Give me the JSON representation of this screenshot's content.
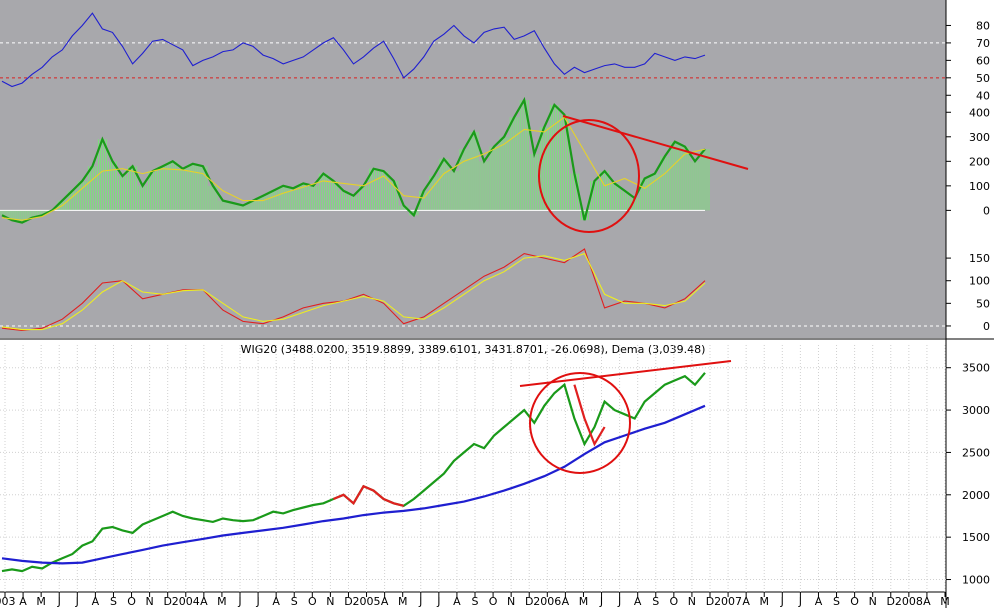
{
  "chart_data": [
    {
      "type": "line",
      "panel": "rsi",
      "ylim": [
        35,
        90
      ],
      "yticks": [
        40,
        50,
        60,
        70,
        80
      ],
      "reference_lines": [
        70,
        50
      ],
      "reference_colors": [
        "#ffffff",
        "#d92020"
      ],
      "series": [
        {
          "color": "#1f1fd0",
          "x": [
            0,
            10,
            20,
            30,
            40,
            50,
            60,
            70,
            80,
            90,
            100,
            110,
            120,
            130,
            140,
            150,
            160,
            170,
            180,
            190,
            200,
            210,
            220,
            230,
            240,
            250,
            260,
            270,
            280,
            290,
            300,
            310,
            320,
            330,
            340,
            350,
            360,
            370,
            380,
            390,
            400,
            410,
            420,
            430,
            440,
            450,
            460,
            470,
            480,
            490,
            500,
            510,
            520,
            530,
            540,
            550,
            560,
            570,
            580,
            590,
            600,
            610,
            620,
            630,
            640,
            650,
            660,
            670,
            680,
            690,
            700
          ],
          "values": [
            48,
            45,
            47,
            52,
            56,
            62,
            66,
            74,
            80,
            87,
            78,
            76,
            68,
            58,
            64,
            71,
            72,
            69,
            66,
            57,
            60,
            62,
            65,
            66,
            70,
            68,
            63,
            61,
            58,
            60,
            62,
            66,
            70,
            73,
            66,
            58,
            62,
            67,
            71,
            61,
            50,
            55,
            62,
            71,
            75,
            80,
            74,
            70,
            76,
            78,
            79,
            72,
            74,
            77,
            67,
            58,
            52,
            56,
            53,
            55,
            57,
            58,
            56,
            56,
            58,
            64,
            62,
            60,
            62,
            61,
            63
          ]
        }
      ]
    },
    {
      "type": "area",
      "panel": "histogram",
      "ylim": [
        -80,
        450
      ],
      "yticks": [
        0,
        100,
        200,
        300,
        400
      ],
      "series": [
        {
          "color": "#1a9a1a",
          "fill": "#7de07d",
          "x": [
            0,
            10,
            20,
            30,
            40,
            50,
            60,
            70,
            80,
            90,
            100,
            110,
            120,
            130,
            140,
            150,
            160,
            170,
            180,
            190,
            200,
            210,
            220,
            230,
            240,
            250,
            260,
            270,
            280,
            290,
            300,
            310,
            320,
            330,
            340,
            350,
            360,
            370,
            380,
            390,
            400,
            410,
            420,
            430,
            440,
            450,
            460,
            470,
            480,
            490,
            500,
            510,
            520,
            530,
            540,
            550,
            560,
            570,
            580,
            590,
            600,
            610,
            620,
            630,
            640,
            650,
            660,
            670,
            680,
            690,
            700
          ],
          "values": [
            -20,
            -40,
            -50,
            -30,
            -20,
            0,
            40,
            80,
            120,
            180,
            290,
            200,
            140,
            180,
            100,
            160,
            180,
            200,
            170,
            190,
            180,
            100,
            40,
            30,
            20,
            40,
            60,
            80,
            100,
            90,
            110,
            100,
            150,
            120,
            80,
            60,
            100,
            170,
            160,
            120,
            20,
            -20,
            80,
            140,
            210,
            160,
            250,
            320,
            200,
            260,
            300,
            380,
            450,
            230,
            340,
            430,
            390,
            150,
            -40,
            120,
            160,
            110,
            80,
            50,
            130,
            150,
            220,
            280,
            260,
            200,
            250
          ]
        },
        {
          "color": "#e6d22a",
          "x": [
            0,
            20,
            40,
            60,
            80,
            100,
            120,
            140,
            160,
            180,
            200,
            220,
            240,
            260,
            280,
            300,
            320,
            340,
            360,
            380,
            400,
            420,
            440,
            460,
            480,
            500,
            520,
            540,
            560,
            580,
            600,
            620,
            640,
            660,
            680,
            700
          ],
          "values": [
            -30,
            -40,
            -25,
            20,
            90,
            160,
            170,
            150,
            170,
            165,
            150,
            80,
            40,
            40,
            70,
            95,
            120,
            110,
            100,
            140,
            60,
            50,
            150,
            200,
            230,
            270,
            330,
            320,
            380,
            240,
            100,
            130,
            90,
            150,
            230,
            250
          ]
        }
      ]
    },
    {
      "type": "line",
      "panel": "oscillator",
      "ylim": [
        -20,
        190
      ],
      "yticks": [
        0,
        50,
        100,
        150
      ],
      "reference_lines": [
        0
      ],
      "reference_colors": [
        "#ffffff"
      ],
      "series": [
        {
          "color": "#e02020",
          "x": [
            0,
            20,
            40,
            60,
            80,
            100,
            120,
            140,
            160,
            180,
            200,
            220,
            240,
            260,
            280,
            300,
            320,
            340,
            360,
            380,
            400,
            420,
            440,
            460,
            480,
            500,
            520,
            540,
            560,
            580,
            600,
            620,
            640,
            660,
            680,
            700
          ],
          "values": [
            -5,
            -10,
            -5,
            15,
            50,
            95,
            100,
            60,
            70,
            80,
            80,
            35,
            10,
            5,
            20,
            40,
            50,
            55,
            70,
            50,
            5,
            20,
            50,
            80,
            110,
            130,
            160,
            150,
            140,
            170,
            40,
            55,
            50,
            40,
            60,
            100
          ]
        },
        {
          "color": "#eeee20",
          "x": [
            0,
            20,
            40,
            60,
            80,
            100,
            120,
            140,
            160,
            180,
            200,
            220,
            240,
            260,
            280,
            300,
            320,
            340,
            360,
            380,
            400,
            420,
            440,
            460,
            480,
            500,
            520,
            540,
            560,
            580,
            600,
            620,
            640,
            660,
            680,
            700
          ],
          "values": [
            -2,
            -8,
            -8,
            5,
            35,
            75,
            100,
            75,
            70,
            78,
            80,
            50,
            20,
            10,
            15,
            30,
            45,
            55,
            65,
            55,
            20,
            15,
            40,
            70,
            100,
            120,
            150,
            155,
            145,
            160,
            70,
            50,
            50,
            45,
            55,
            95
          ]
        }
      ]
    },
    {
      "type": "line",
      "panel": "price",
      "title": "WIG20 (3488.0200, 3519.8899, 3389.6101, 3431.8701, -26.0698), Dema (3,039.48)",
      "ylim": [
        900,
        3650
      ],
      "yticks": [
        1000,
        1500,
        2000,
        2500,
        3000,
        3500
      ],
      "x_tick_labels": [
        "003",
        "A",
        "M",
        "J",
        "J",
        "A",
        "S",
        "O",
        "N",
        "D",
        "2004",
        "A",
        "M",
        "J",
        "J",
        "A",
        "S",
        "O",
        "N",
        "D",
        "2005",
        "A",
        "M",
        "J",
        "J",
        "A",
        "S",
        "O",
        "N",
        "D",
        "2006",
        "A",
        "M",
        "J",
        "J",
        "A",
        "S",
        "O",
        "N",
        "D",
        "2007",
        "A",
        "M",
        "J",
        "J",
        "A",
        "S",
        "O",
        "N",
        "D",
        "2008",
        "A",
        "M"
      ],
      "series": [
        {
          "color": "#1a9a1a",
          "x": [
            0,
            10,
            20,
            30,
            40,
            50,
            60,
            70,
            80,
            90,
            100,
            110,
            120,
            130,
            140,
            150,
            160,
            170,
            180,
            190,
            200,
            210,
            220,
            230,
            240,
            250,
            260,
            270,
            280,
            290,
            300,
            310,
            320,
            330,
            340,
            350,
            360,
            370,
            380,
            390,
            400,
            410,
            420,
            430,
            440,
            450,
            460,
            470,
            480,
            490,
            500,
            510,
            520,
            530,
            540,
            550,
            560,
            570,
            580,
            590,
            600,
            610,
            620,
            630,
            640,
            650,
            660,
            670,
            680,
            690,
            700
          ],
          "values": [
            1100,
            1120,
            1100,
            1150,
            1130,
            1200,
            1250,
            1300,
            1400,
            1450,
            1600,
            1620,
            1580,
            1550,
            1650,
            1700,
            1750,
            1800,
            1750,
            1720,
            1700,
            1680,
            1720,
            1700,
            1690,
            1700,
            1750,
            1800,
            1780,
            1820,
            1850,
            1880,
            1900,
            1950,
            2000,
            1900,
            2100,
            2050,
            1950,
            1900,
            1870,
            1950,
            2050,
            2150,
            2250,
            2400,
            2500,
            2600,
            2550,
            2700,
            2800,
            2900,
            3000,
            2850,
            3050,
            3200,
            3300,
            2900,
            2600,
            2800,
            3100,
            3000,
            2950,
            2900,
            3100,
            3200,
            3300,
            3350,
            3400,
            3300,
            3440
          ]
        },
        {
          "color": "#e02020",
          "x": [
            330,
            340,
            350,
            360,
            370,
            380,
            390,
            400
          ],
          "values": [
            1950,
            2000,
            1900,
            2100,
            2050,
            1950,
            1900,
            1870
          ]
        },
        {
          "color": "#e02020",
          "x": [
            570,
            580,
            590,
            600
          ],
          "values": [
            3300,
            2900,
            2600,
            2800
          ]
        },
        {
          "color": "#1f1fd0",
          "x": [
            0,
            20,
            40,
            60,
            80,
            100,
            120,
            140,
            160,
            180,
            200,
            220,
            240,
            260,
            280,
            300,
            320,
            340,
            360,
            380,
            400,
            420,
            440,
            460,
            480,
            500,
            520,
            540,
            560,
            580,
            600,
            620,
            640,
            660,
            680,
            700
          ],
          "values": [
            1250,
            1220,
            1200,
            1190,
            1200,
            1250,
            1300,
            1350,
            1400,
            1440,
            1480,
            1520,
            1550,
            1580,
            1610,
            1650,
            1690,
            1720,
            1760,
            1790,
            1810,
            1840,
            1880,
            1920,
            1980,
            2050,
            2130,
            2220,
            2330,
            2480,
            2620,
            2700,
            2780,
            2850,
            2950,
            3050
          ]
        }
      ]
    }
  ]
}
